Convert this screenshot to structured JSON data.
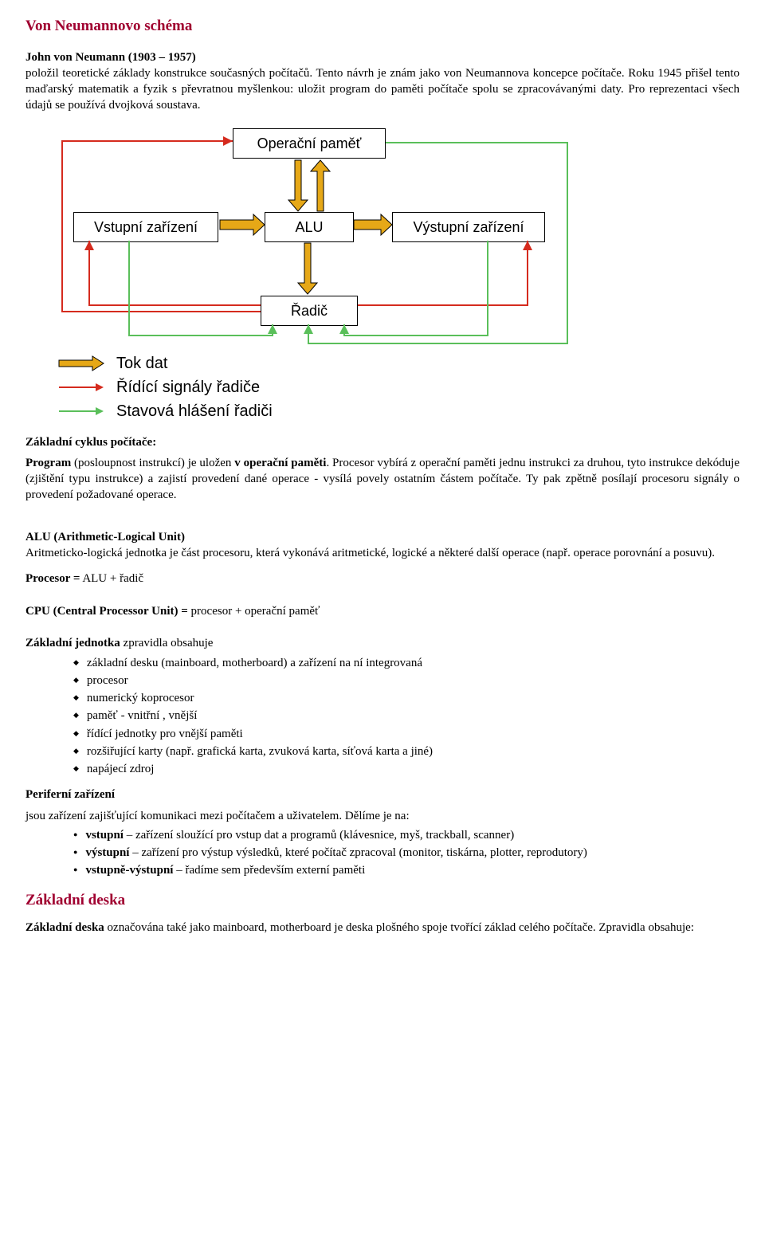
{
  "title": "Von Neumannovo schéma",
  "intro": {
    "name_bold": "John von Neumann (1903 – 1957)",
    "p1a": "položil teoretické základy konstrukce současných počítačů. Tento návrh je znám jako von ",
    "p1b": "Neumannova koncepce počítače. ",
    "p1c": "Roku 1945 přišel tento maďarský matematik a fyzik s převratnou myšlenkou: uložit program do paměti počítače spolu se zpracovávanými daty. Pro reprezentaci všech údajů se používá dvojková soustava."
  },
  "diagram": {
    "boxes": {
      "opmem": "Operační paměť",
      "vstup": "Vstupní zařízení",
      "alu": "ALU",
      "vystup": "Výstupní zařízení",
      "radic": "Řadič"
    },
    "legend": {
      "tok": "Tok dat",
      "ridici": "Řídící signály řadiče",
      "stav": "Stavová hlášení řadiči"
    },
    "colors": {
      "data": "#e6a817",
      "control": "#d52b1e",
      "status": "#5abf5a"
    }
  },
  "cycle": {
    "heading": "Základní cyklus počítače:",
    "p1_a": "Program",
    "p1_b": " (posloupnost instrukcí) je uložen ",
    "p1_c": "v operační paměti",
    "p1_d": ". Procesor vybírá z operační paměti jednu instrukci za druhou, tyto instrukce dekóduje (zjištění typu instrukce) a zajistí provedení dané operace - vysílá povely ostatním částem počítače. Ty pak zpětně posílají procesoru signály o provedení požadované operace."
  },
  "alu": {
    "heading": "ALU (Arithmetic-Logical Unit)",
    "text": "Aritmeticko-logická jednotka je část procesoru, která vykonává aritmetické, logické a některé další operace (např. operace porovnání a posuvu)."
  },
  "procesor": {
    "label": "Procesor =",
    "value": " ALU + řadič"
  },
  "cpu": {
    "label": "CPU (Central Processor Unit) =",
    "value": " procesor + operační paměť"
  },
  "zakljed": {
    "heading": "Základní jednotka",
    "tail": " zpravidla obsahuje",
    "items": [
      "základní desku (mainboard, motherboard) a zařízení na ní integrovaná",
      "procesor",
      "numerický koprocesor",
      "paměť - vnitřní , vnější",
      "řídící jednotky pro vnější paměti",
      "rozšiřující karty (např. grafická karta, zvuková karta, síťová karta a jiné)",
      "napájecí zdroj"
    ]
  },
  "perif": {
    "heading": "Periferní zařízení",
    "lead": "jsou zařízení zajišťující komunikaci mezi počítačem a uživatelem. Dělíme je na:",
    "items": [
      {
        "b": "vstupní",
        "t": " – zařízení sloužící pro vstup dat a programů (klávesnice, myš, trackball, scanner)"
      },
      {
        "b": "výstupní",
        "t": " – zařízení pro výstup výsledků, které počítač zpracoval (monitor, tiskárna, plotter, reprodutory)"
      },
      {
        "b": "vstupně-výstupní",
        "t": " – řadíme sem především externí paměti"
      }
    ]
  },
  "zakldeska": {
    "heading": "Základní deska",
    "p_a": "Základní deska",
    "p_b": " označována také jako mainboard, motherboard je deska plošného spoje tvořící základ celého počítače. Zpravidla obsahuje:"
  }
}
